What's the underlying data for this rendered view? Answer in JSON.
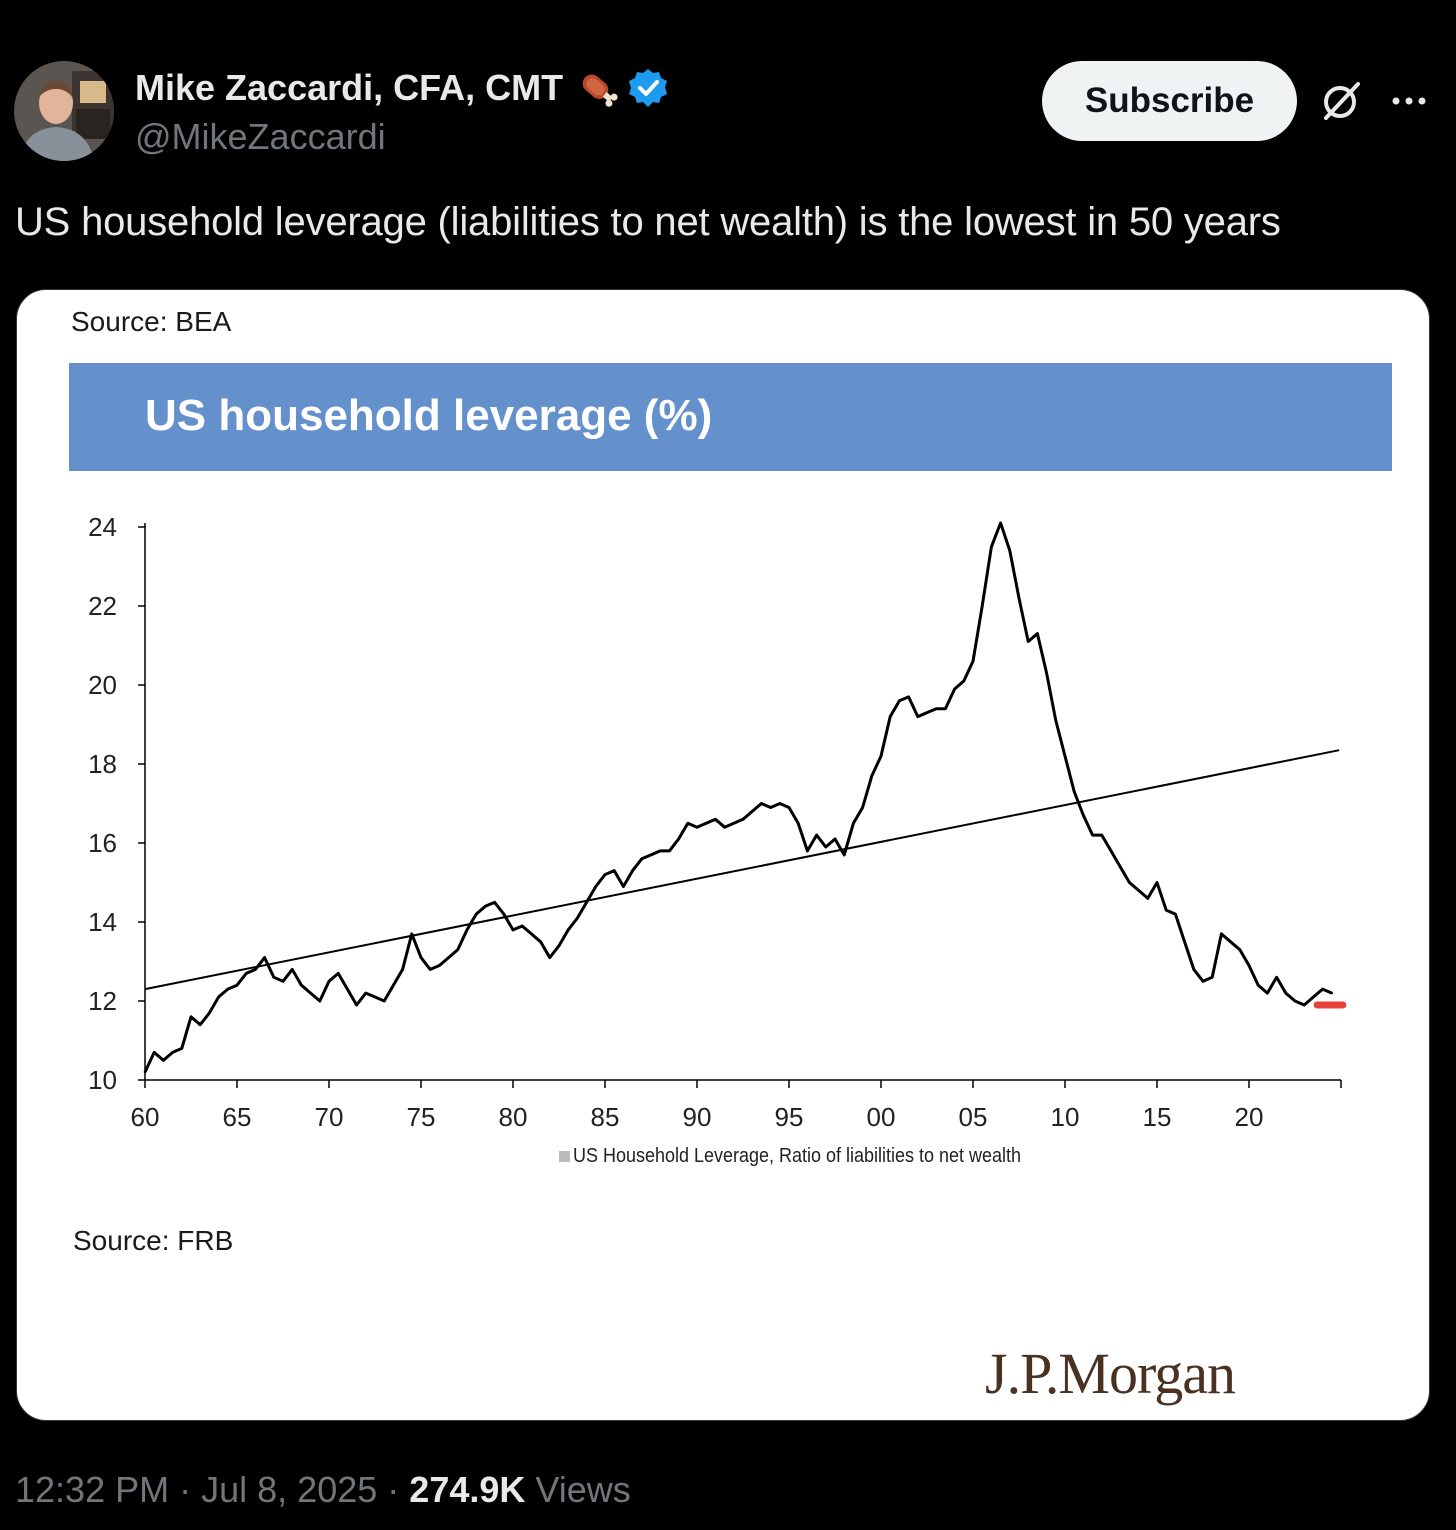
{
  "author": {
    "name": "Mike Zaccardi, CFA, CMT",
    "handle": "@MikeZaccardi",
    "verified": true
  },
  "actions": {
    "subscribe_label": "Subscribe"
  },
  "tweet": {
    "text": "US household leverage (liabilities to net wealth) is the lowest in 50 years",
    "time": "12:32 PM",
    "date": "Jul 8, 2025",
    "separator": "·",
    "views_count": "274.9K",
    "views_label": "Views"
  },
  "card": {
    "source_top": "Source: BEA",
    "source_bottom": "Source: FRB",
    "logo_text": "J.P.Morgan",
    "colors": {
      "banner": "#6491cc",
      "highlight": "#e8403a"
    }
  },
  "chart_data": {
    "type": "line",
    "title": "US household leverage (%)",
    "legend": "US Household Leverage, Ratio of liabilities to net wealth",
    "legend_position": "bottom-center",
    "xlabel": "",
    "ylabel": "",
    "ylim": [
      10,
      24
    ],
    "xlim": [
      1960,
      2025
    ],
    "x_ticks": [
      1960,
      1965,
      1970,
      1975,
      1980,
      1985,
      1990,
      1995,
      2000,
      2005,
      2010,
      2015,
      2020
    ],
    "x_tick_labels": [
      "60",
      "65",
      "70",
      "75",
      "80",
      "85",
      "90",
      "95",
      "00",
      "05",
      "10",
      "15",
      "20"
    ],
    "y_ticks": [
      10,
      12,
      14,
      16,
      18,
      20,
      22,
      24
    ],
    "y_tick_labels": [
      "10",
      "12",
      "14",
      "16",
      "18",
      "20",
      "22",
      "24"
    ],
    "series": [
      {
        "name": "US Household Leverage, Ratio of liabilities to net wealth",
        "x": [
          1960,
          1960.5,
          1961,
          1961.5,
          1962,
          1962.5,
          1963,
          1963.5,
          1964,
          1964.5,
          1965,
          1965.5,
          1966,
          1966.5,
          1967,
          1967.5,
          1968,
          1968.5,
          1969,
          1969.5,
          1970,
          1970.5,
          1971,
          1971.5,
          1972,
          1972.5,
          1973,
          1973.5,
          1974,
          1974.5,
          1975,
          1975.5,
          1976,
          1976.5,
          1977,
          1977.5,
          1978,
          1978.5,
          1979,
          1979.5,
          1980,
          1980.5,
          1981,
          1981.5,
          1982,
          1982.5,
          1983,
          1983.5,
          1984,
          1984.5,
          1985,
          1985.5,
          1986,
          1986.5,
          1987,
          1987.5,
          1988,
          1988.5,
          1989,
          1989.5,
          1990,
          1990.5,
          1991,
          1991.5,
          1992,
          1992.5,
          1993,
          1993.5,
          1994,
          1994.5,
          1995,
          1995.5,
          1996,
          1996.5,
          1997,
          1997.5,
          1998,
          1998.5,
          1999,
          1999.5,
          2000,
          2000.5,
          2001,
          2001.5,
          2002,
          2002.5,
          2003,
          2003.5,
          2004,
          2004.5,
          2005,
          2005.5,
          2006,
          2006.5,
          2007,
          2007.5,
          2008,
          2008.5,
          2009,
          2009.5,
          2010,
          2010.5,
          2011,
          2011.5,
          2012,
          2012.5,
          2013,
          2013.5,
          2014,
          2014.5,
          2015,
          2015.5,
          2016,
          2016.5,
          2017,
          2017.5,
          2018,
          2018.5,
          2019,
          2019.5,
          2020,
          2020.5,
          2021,
          2021.5,
          2022,
          2022.5,
          2023,
          2023.5,
          2024,
          2024.5
        ],
        "values": [
          10.2,
          10.7,
          10.5,
          10.7,
          10.8,
          11.6,
          11.4,
          11.7,
          12.1,
          12.3,
          12.4,
          12.7,
          12.8,
          13.1,
          12.6,
          12.5,
          12.8,
          12.4,
          12.2,
          12.0,
          12.5,
          12.7,
          12.3,
          11.9,
          12.2,
          12.1,
          12.0,
          12.4,
          12.8,
          13.7,
          13.1,
          12.8,
          12.9,
          13.1,
          13.3,
          13.8,
          14.2,
          14.4,
          14.5,
          14.2,
          13.8,
          13.9,
          13.7,
          13.5,
          13.1,
          13.4,
          13.8,
          14.1,
          14.5,
          14.9,
          15.2,
          15.3,
          14.9,
          15.3,
          15.6,
          15.7,
          15.8,
          15.8,
          16.1,
          16.5,
          16.4,
          16.5,
          16.6,
          16.4,
          16.5,
          16.6,
          16.8,
          17.0,
          16.9,
          17.0,
          16.9,
          16.5,
          15.8,
          16.2,
          15.9,
          16.1,
          15.7,
          16.5,
          16.9,
          17.7,
          18.2,
          19.2,
          19.6,
          19.7,
          19.2,
          19.3,
          19.4,
          19.4,
          19.9,
          20.1,
          20.6,
          22.0,
          23.5,
          24.1,
          23.4,
          22.2,
          21.1,
          21.3,
          20.3,
          19.1,
          18.2,
          17.3,
          16.7,
          16.2,
          16.2,
          15.8,
          15.4,
          15.0,
          14.8,
          14.6,
          15.0,
          14.3,
          14.2,
          13.5,
          12.8,
          12.5,
          12.6,
          13.7,
          13.5,
          13.3,
          12.9,
          12.4,
          12.2,
          12.6,
          12.2,
          12.0,
          11.9,
          12.1,
          12.3,
          12.2
        ],
        "trend": {
          "start": [
            1960,
            12.3
          ],
          "end": [
            2024.9,
            18.35
          ]
        },
        "latest_marker_value": 11.9,
        "latest_marker_range": [
          2023.7,
          2025.1
        ]
      }
    ]
  }
}
